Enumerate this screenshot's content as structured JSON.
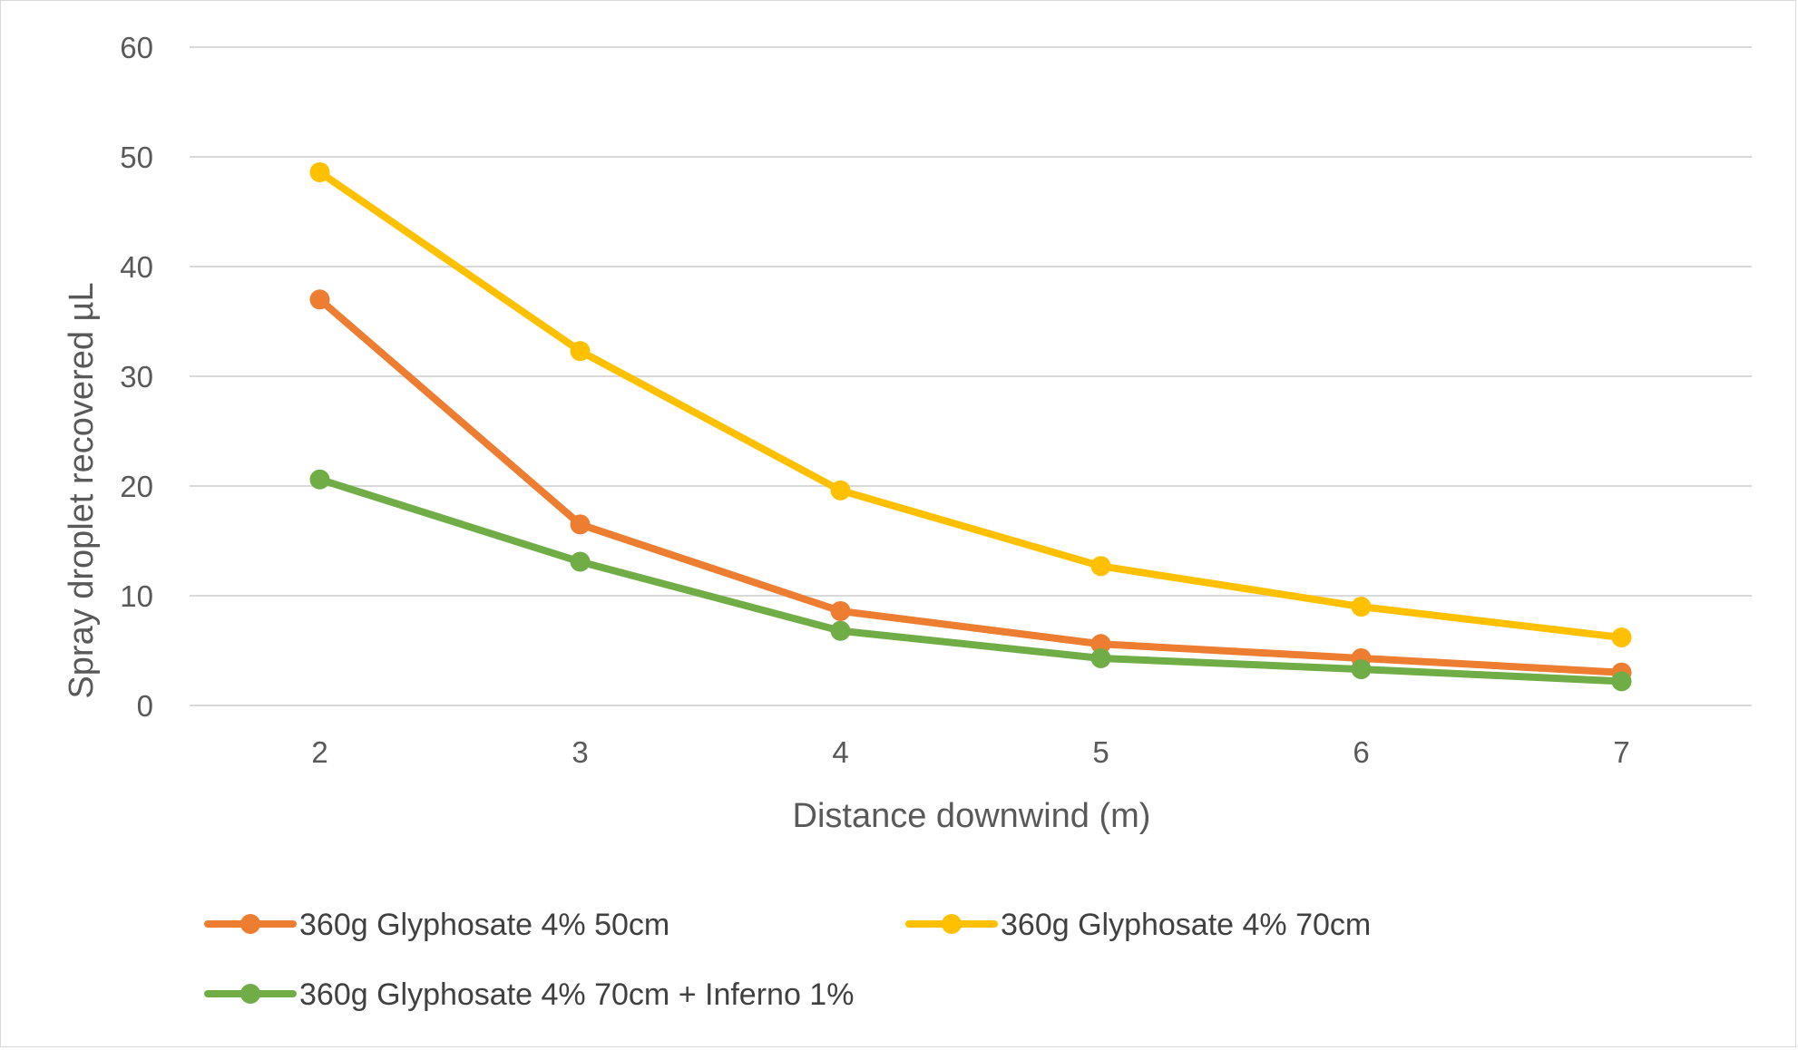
{
  "chart_data": {
    "type": "line",
    "title": "",
    "xlabel": "Distance downwind (m)",
    "ylabel": "Spray droplet recovered µL",
    "x": [
      2,
      3,
      4,
      5,
      6,
      7
    ],
    "x_tick_labels": [
      "2",
      "3",
      "4",
      "5",
      "6",
      "7"
    ],
    "ylim": [
      0,
      60
    ],
    "y_ticks": [
      0,
      10,
      20,
      30,
      40,
      50,
      60
    ],
    "y_tick_labels": [
      "0",
      "10",
      "20",
      "30",
      "40",
      "50",
      "60"
    ],
    "grid": true,
    "legend_position": "bottom",
    "series": [
      {
        "name": "360g Glyphosate 4% 50cm",
        "color": "#ED7D31",
        "values": [
          37.0,
          16.5,
          8.6,
          5.6,
          4.3,
          3.0
        ]
      },
      {
        "name": "360g Glyphosate 4% 70cm",
        "color": "#FFC000",
        "values": [
          48.6,
          32.3,
          19.6,
          12.7,
          9.0,
          6.2
        ]
      },
      {
        "name": "360g Glyphosate 4% 70cm + Inferno 1%",
        "color": "#70AD47",
        "values": [
          20.6,
          13.1,
          6.8,
          4.3,
          3.3,
          2.2
        ]
      }
    ]
  }
}
